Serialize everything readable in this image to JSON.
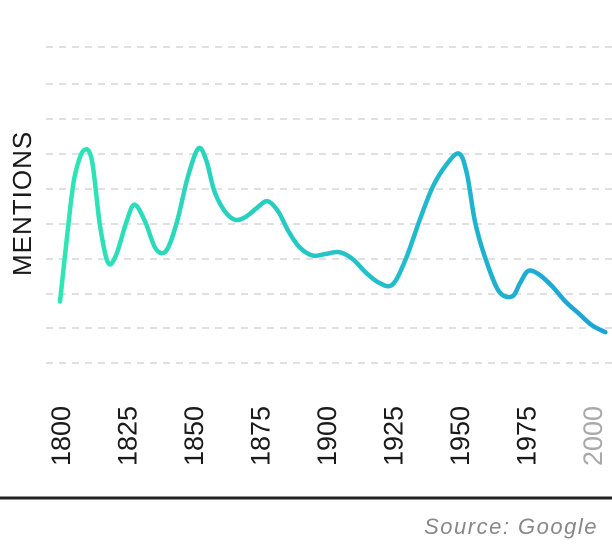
{
  "chart_data": {
    "type": "line",
    "title": "",
    "xlabel": "",
    "ylabel": "MENTIONS",
    "x_ticks": [
      "1800",
      "1825",
      "1850",
      "1875",
      "1900",
      "1925",
      "1950",
      "1975",
      "2000"
    ],
    "grid": true,
    "gradient_colors": [
      "#2ee6b4",
      "#1aa3d8"
    ],
    "series": [
      {
        "x": [
          1800,
          1804,
          1806,
          1809,
          1812,
          1815,
          1818,
          1821,
          1825,
          1828,
          1832,
          1836,
          1840,
          1844,
          1848,
          1852,
          1855,
          1858,
          1862,
          1866,
          1870,
          1874,
          1878,
          1882,
          1886,
          1890,
          1895,
          1900,
          1905,
          1910,
          1915,
          1920,
          1925,
          1930,
          1935,
          1940,
          1945,
          1950,
          1953,
          1956,
          1960,
          1965,
          1970,
          1973,
          1976,
          1980,
          1985,
          1990,
          1995,
          2000,
          2005
        ],
        "y": [
          0.05,
          0.62,
          0.82,
          0.94,
          0.88,
          0.5,
          0.28,
          0.32,
          0.52,
          0.62,
          0.52,
          0.36,
          0.35,
          0.52,
          0.78,
          0.95,
          0.88,
          0.7,
          0.58,
          0.53,
          0.55,
          0.6,
          0.64,
          0.58,
          0.46,
          0.37,
          0.32,
          0.33,
          0.34,
          0.3,
          0.22,
          0.16,
          0.15,
          0.3,
          0.52,
          0.72,
          0.85,
          0.92,
          0.8,
          0.52,
          0.3,
          0.11,
          0.08,
          0.16,
          0.23,
          0.21,
          0.14,
          0.05,
          -0.02,
          -0.09,
          -0.13
        ]
      }
    ],
    "source": "Source: Google"
  }
}
